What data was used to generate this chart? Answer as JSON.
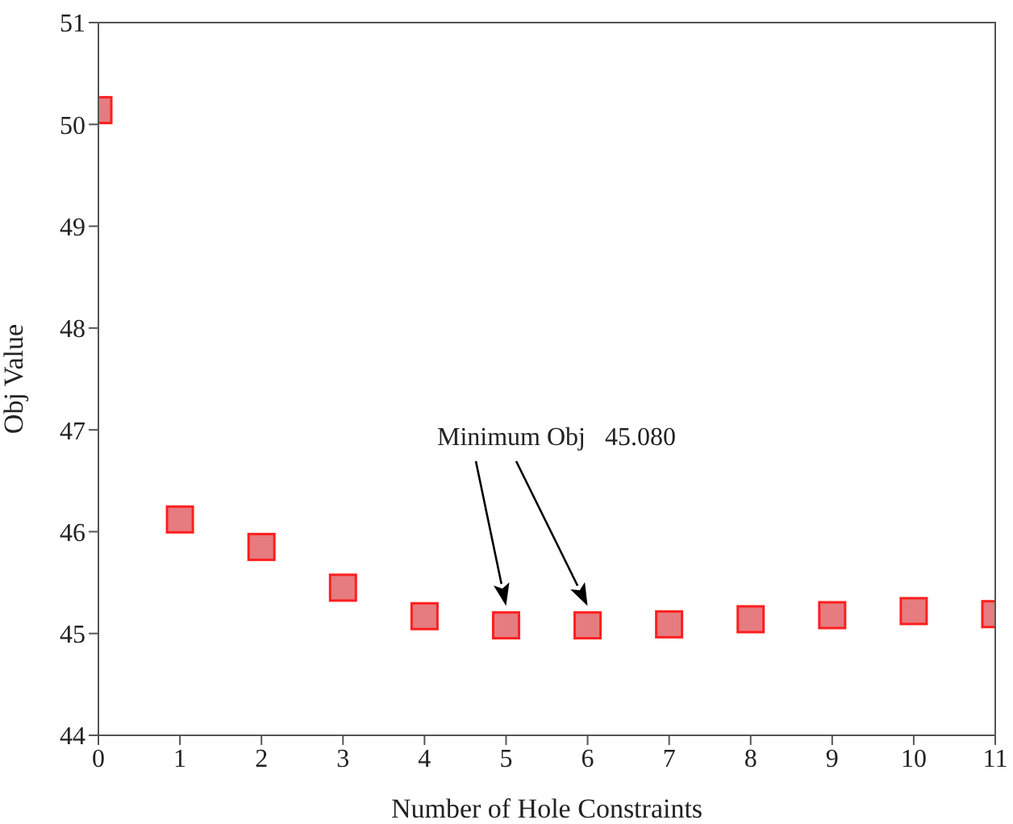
{
  "chart_data": {
    "type": "scatter",
    "xlabel": "Number of Hole Constraints",
    "ylabel": "Obj Value",
    "x": [
      0,
      1,
      2,
      3,
      4,
      5,
      6,
      7,
      8,
      9,
      10,
      11
    ],
    "values": [
      50.14,
      46.12,
      45.85,
      45.45,
      45.17,
      45.08,
      45.08,
      45.09,
      45.14,
      45.18,
      45.22,
      45.19
    ],
    "color": "#e67c80",
    "marker": "square",
    "xlim": [
      0,
      11
    ],
    "xticks": [
      0,
      1,
      2,
      3,
      4,
      5,
      6,
      7,
      8,
      9,
      10,
      11
    ],
    "ylim": [
      44,
      51
    ],
    "yticks": [
      44,
      45,
      46,
      47,
      48,
      49,
      50,
      51
    ],
    "grid": false,
    "annotations": [
      "Minimum Obj   45.080"
    ]
  }
}
